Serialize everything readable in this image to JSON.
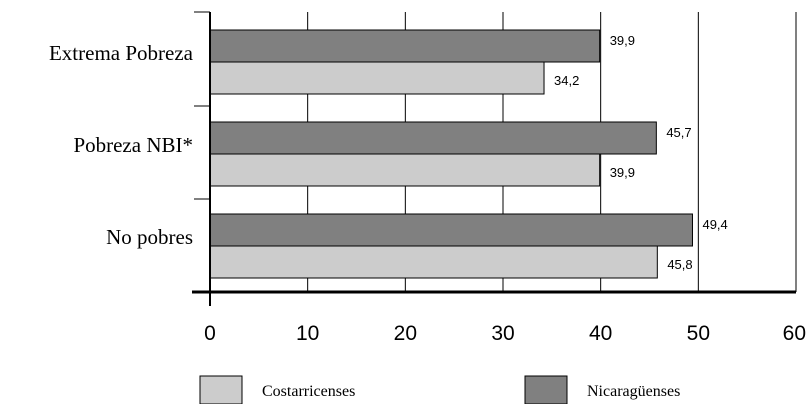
{
  "chart_data": {
    "type": "bar",
    "orientation": "horizontal",
    "categories": [
      "Extrema Pobreza",
      "Pobreza NBI*",
      "No pobres"
    ],
    "series": [
      {
        "name": "Nicaragüenses",
        "values": [
          39.9,
          45.7,
          49.4
        ],
        "labels": [
          "39,9",
          "45,7",
          "49,4"
        ],
        "color": "#808080"
      },
      {
        "name": "Costarricenses",
        "values": [
          34.2,
          39.9,
          45.8
        ],
        "labels": [
          "34,2",
          "39,9",
          "45,8"
        ],
        "color": "#cccccc"
      }
    ],
    "xlim": [
      0,
      60
    ],
    "xticks": [
      "0",
      "10",
      "20",
      "30",
      "40",
      "50",
      "60"
    ],
    "grid": true,
    "legend": [
      "Costarricenses",
      "Nicaragüenses"
    ],
    "legend_position": "bottom"
  }
}
